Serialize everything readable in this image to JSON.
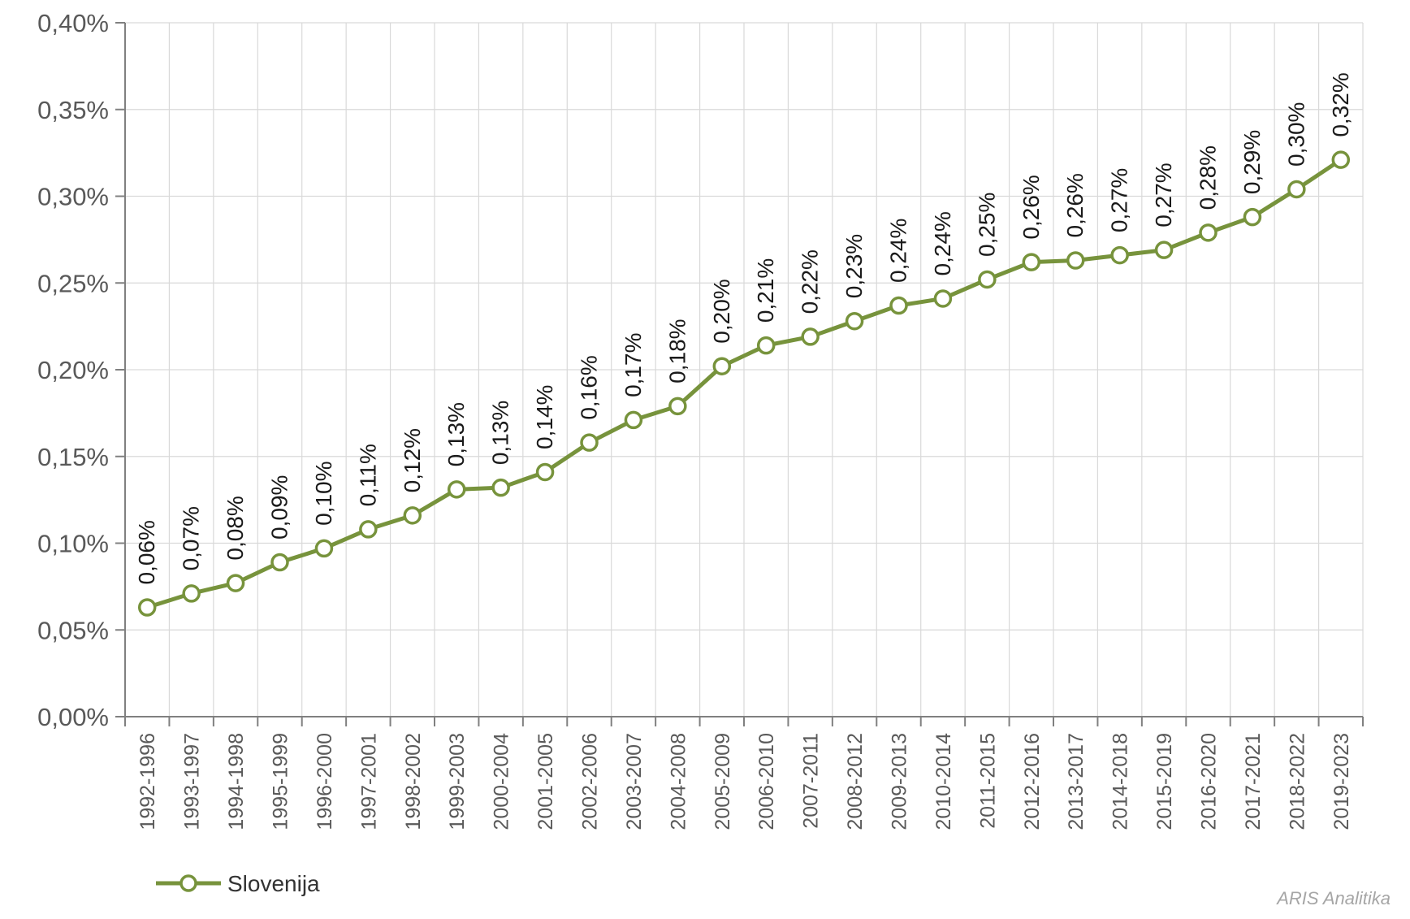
{
  "chart_data": {
    "type": "line",
    "categories": [
      "1992-1996",
      "1993-1997",
      "1994-1998",
      "1995-1999",
      "1996-2000",
      "1997-2001",
      "1998-2002",
      "1999-2003",
      "2000-2004",
      "2001-2005",
      "2002-2006",
      "2003-2007",
      "2004-2008",
      "2005-2009",
      "2006-2010",
      "2007-2011",
      "2008-2012",
      "2009-2013",
      "2010-2014",
      "2011-2015",
      "2012-2016",
      "2013-2017",
      "2014-2018",
      "2015-2019",
      "2016-2020",
      "2017-2021",
      "2018-2022",
      "2019-2023"
    ],
    "series": [
      {
        "name": "Slovenija",
        "values": [
          0.063,
          0.071,
          0.077,
          0.089,
          0.097,
          0.108,
          0.116,
          0.131,
          0.132,
          0.141,
          0.158,
          0.171,
          0.179,
          0.202,
          0.214,
          0.219,
          0.228,
          0.237,
          0.241,
          0.252,
          0.262,
          0.263,
          0.266,
          0.269,
          0.279,
          0.288,
          0.304,
          0.321
        ],
        "labels": [
          "0,06%",
          "0,07%",
          "0,08%",
          "0,09%",
          "0,10%",
          "0,11%",
          "0,12%",
          "0,13%",
          "0,13%",
          "0,14%",
          "0,16%",
          "0,17%",
          "0,18%",
          "0,20%",
          "0,21%",
          "0,22%",
          "0,23%",
          "0,24%",
          "0,24%",
          "0,25%",
          "0,26%",
          "0,26%",
          "0,27%",
          "0,27%",
          "0,28%",
          "0,29%",
          "0,30%",
          "0,32%"
        ],
        "color": "#77933C"
      }
    ],
    "yticks": [
      0.0,
      0.05,
      0.1,
      0.15,
      0.2,
      0.25,
      0.3,
      0.35,
      0.4
    ],
    "ytick_labels": [
      "0,00%",
      "0,05%",
      "0,10%",
      "0,15%",
      "0,20%",
      "0,25%",
      "0,30%",
      "0,35%",
      "0,40%"
    ],
    "ylim": [
      0,
      0.4
    ],
    "grid": true,
    "legend_position": "bottom-left",
    "title": "",
    "xlabel": "",
    "ylabel": ""
  },
  "colors": {
    "series": "#77933C",
    "grid": "#d9d9d9",
    "axis": "#808080",
    "tick_text": "#595959"
  },
  "watermark": "ARIS Analitika"
}
